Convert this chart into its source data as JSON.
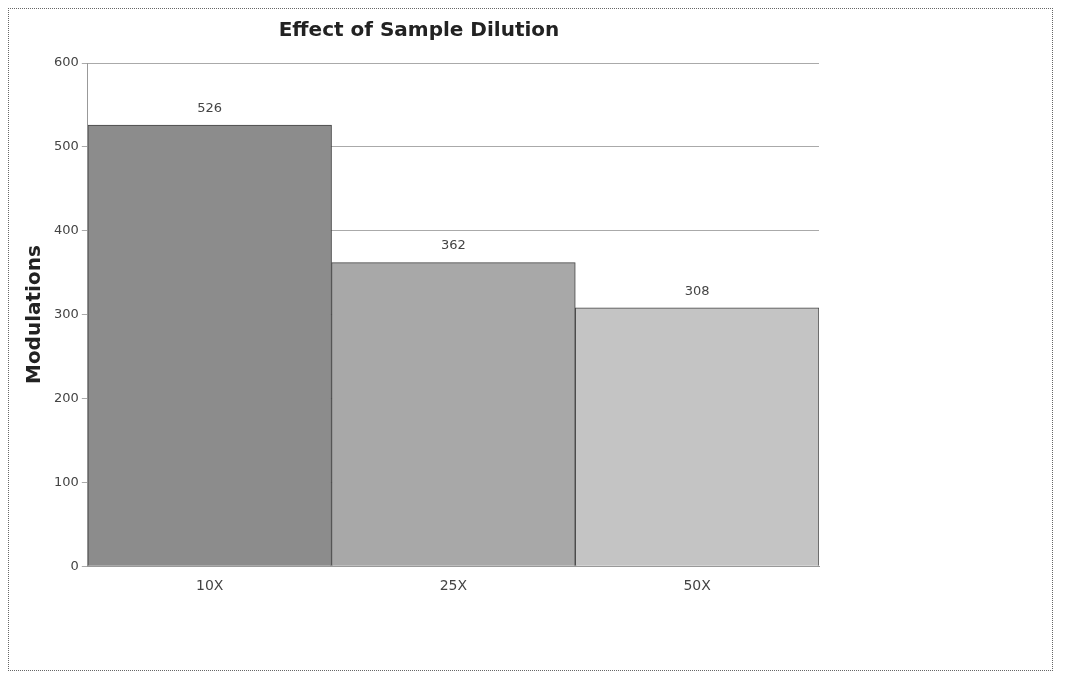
{
  "chart_data": {
    "type": "bar",
    "title": "Effect of Sample Dilution",
    "ylabel": "Modulations",
    "categories": [
      "10X",
      "25X",
      "50X"
    ],
    "values": [
      526,
      362,
      308
    ],
    "colors": [
      "#8c8c8c",
      "#a8a8a8",
      "#c4c4c4"
    ],
    "ylim": [
      0,
      600
    ],
    "yticks": [
      0,
      100,
      200,
      300,
      400,
      500,
      600
    ],
    "grid": "y",
    "data_labels": true,
    "legend": false
  }
}
